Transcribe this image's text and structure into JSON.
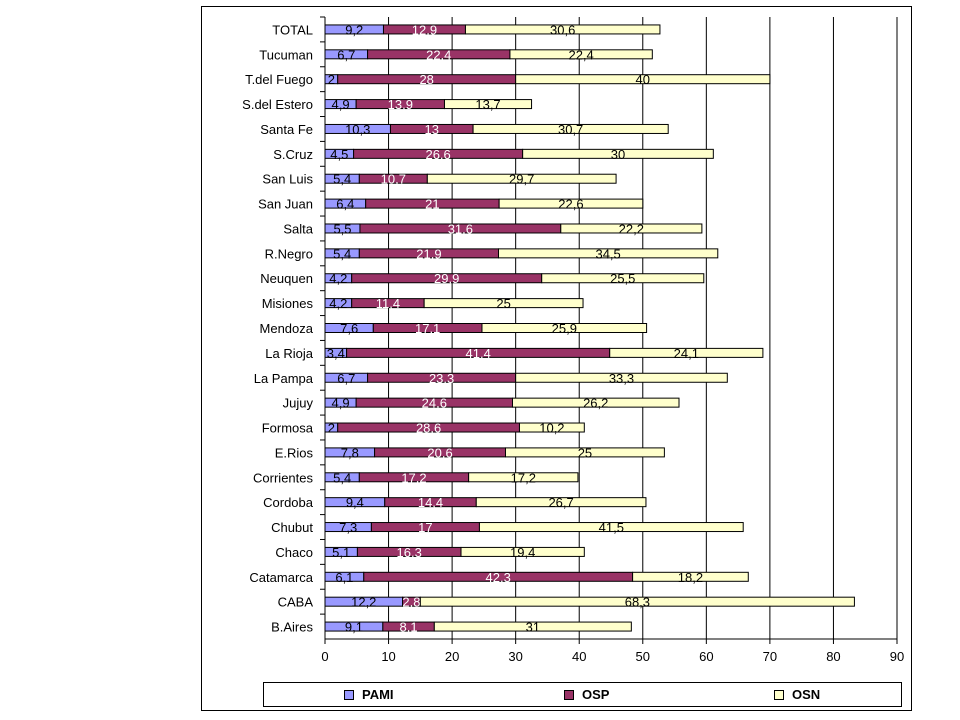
{
  "chart_data": {
    "type": "bar",
    "orientation": "horizontal",
    "stacked": true,
    "categories": [
      "TOTAL",
      "Tucuman",
      "T.del Fuego",
      "S.del Estero",
      "Santa Fe",
      "S.Cruz",
      "San Luis",
      "San Juan",
      "Salta",
      "R.Negro",
      "Neuquen",
      "Misiones",
      "Mendoza",
      "La Rioja",
      "La Pampa",
      "Jujuy",
      "Formosa",
      "E.Rios",
      "Corrientes",
      "Cordoba",
      "Chubut",
      "Chaco",
      "Catamarca",
      "CABA",
      "B.Aires"
    ],
    "series": [
      {
        "name": "PAMI",
        "color": "#9999ff",
        "values": [
          9.2,
          6.7,
          2,
          4.9,
          10.3,
          4.5,
          5.4,
          6.4,
          5.5,
          5.4,
          4.2,
          4.2,
          7.6,
          3.4,
          6.7,
          4.9,
          2,
          7.8,
          5.4,
          9.4,
          7.3,
          5.1,
          6.1,
          12.2,
          9.1
        ],
        "labels": [
          "9,2",
          "6,7",
          "2",
          "4,9",
          "10,3",
          "4,5",
          "5,4",
          "6,4",
          "5,5",
          "5,4",
          "4,2",
          "4,2",
          "7,6",
          "3,4",
          "6,7",
          "4,9",
          "2",
          "7,8",
          "5,4",
          "9,4",
          "7,3",
          "5,1",
          "6,1",
          "12,2",
          "9,1"
        ]
      },
      {
        "name": "OSP",
        "color": "#993366",
        "values": [
          12.9,
          22.4,
          28,
          13.9,
          13,
          26.6,
          10.7,
          21,
          31.6,
          21.9,
          29.9,
          11.4,
          17.1,
          41.4,
          23.3,
          24.6,
          28.6,
          20.6,
          17.2,
          14.4,
          17,
          16.3,
          42.3,
          2.8,
          8.1
        ],
        "labels": [
          "12,9",
          "22,4",
          "28",
          "13,9",
          "13",
          "26,6",
          "10,7",
          "21",
          "31,6",
          "21,9",
          "29,9",
          "11,4",
          "17,1",
          "41,4",
          "23,3",
          "24,6",
          "28,6",
          "20,6",
          "17,2",
          "14,4",
          "17",
          "16,3",
          "42,3",
          "2,8",
          "8,1"
        ]
      },
      {
        "name": "OSN",
        "color": "#ffffcc",
        "values": [
          30.6,
          22.4,
          40,
          13.7,
          30.7,
          30,
          29.7,
          22.6,
          22.2,
          34.5,
          25.5,
          25,
          25.9,
          24.1,
          33.3,
          26.2,
          10.2,
          25,
          17.2,
          26.7,
          41.5,
          19.4,
          18.2,
          68.3,
          31
        ],
        "labels": [
          "30,6",
          "22,4",
          "40",
          "13,7",
          "30,7",
          "30",
          "29,7",
          "22,6",
          "22,2",
          "34,5",
          "25,5",
          "25",
          "25,9",
          "24,1",
          "33,3",
          "26,2",
          "10,2",
          "25",
          "17,2",
          "26,7",
          "41,5",
          "19,4",
          "18,2",
          "68,3",
          "31"
        ]
      }
    ],
    "xlim": [
      0,
      90
    ],
    "xticks": [
      "0",
      "10",
      "20",
      "30",
      "40",
      "50",
      "60",
      "70",
      "80",
      "90"
    ],
    "grid": true,
    "legend_position": "bottom"
  }
}
